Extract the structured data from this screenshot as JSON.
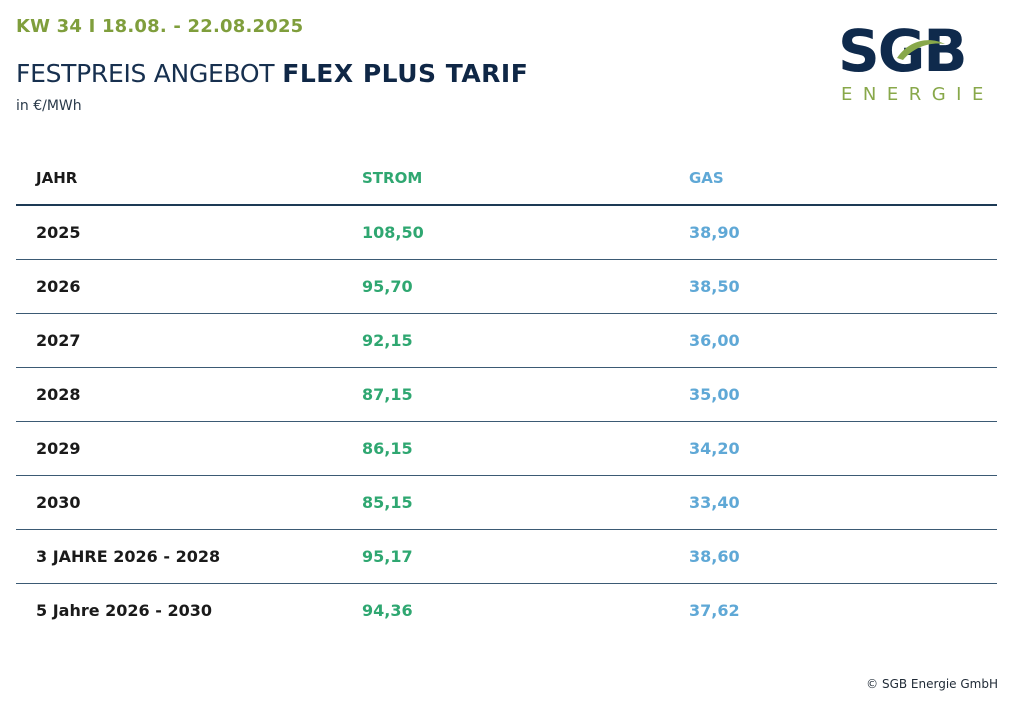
{
  "header": {
    "week": "KW 34 I 18.08. - 22.08.2025",
    "title_light": "FESTPREIS ANGEBOT",
    "title_bold": "FLEX PLUS TARIF",
    "unit": "in €/MWh"
  },
  "logo": {
    "word": "SGB",
    "subtitle": "ENERGIE",
    "colors": {
      "navy": "#0f2a4c",
      "green": "#88a84a"
    }
  },
  "table": {
    "columns": [
      "JAHR",
      "STROM",
      "GAS"
    ],
    "rows": [
      {
        "jahr": "2025",
        "strom": "108,50",
        "gas": "38,90"
      },
      {
        "jahr": "2026",
        "strom": "95,70",
        "gas": "38,50"
      },
      {
        "jahr": "2027",
        "strom": "92,15",
        "gas": "36,00"
      },
      {
        "jahr": "2028",
        "strom": "87,15",
        "gas": "35,00"
      },
      {
        "jahr": "2029",
        "strom": "86,15",
        "gas": "34,20"
      },
      {
        "jahr": "2030",
        "strom": "85,15",
        "gas": "33,40"
      },
      {
        "jahr": "3 JAHRE 2026 - 2028",
        "strom": "95,17",
        "gas": "38,60"
      },
      {
        "jahr": "5 Jahre 2026 - 2030",
        "strom": "94,36",
        "gas": "37,62"
      }
    ],
    "colors": {
      "strom": "#2fa771",
      "gas": "#5fa8d6",
      "rule": "#1d3a55"
    }
  },
  "footer": {
    "copyright": "© SGB Energie GmbH"
  }
}
